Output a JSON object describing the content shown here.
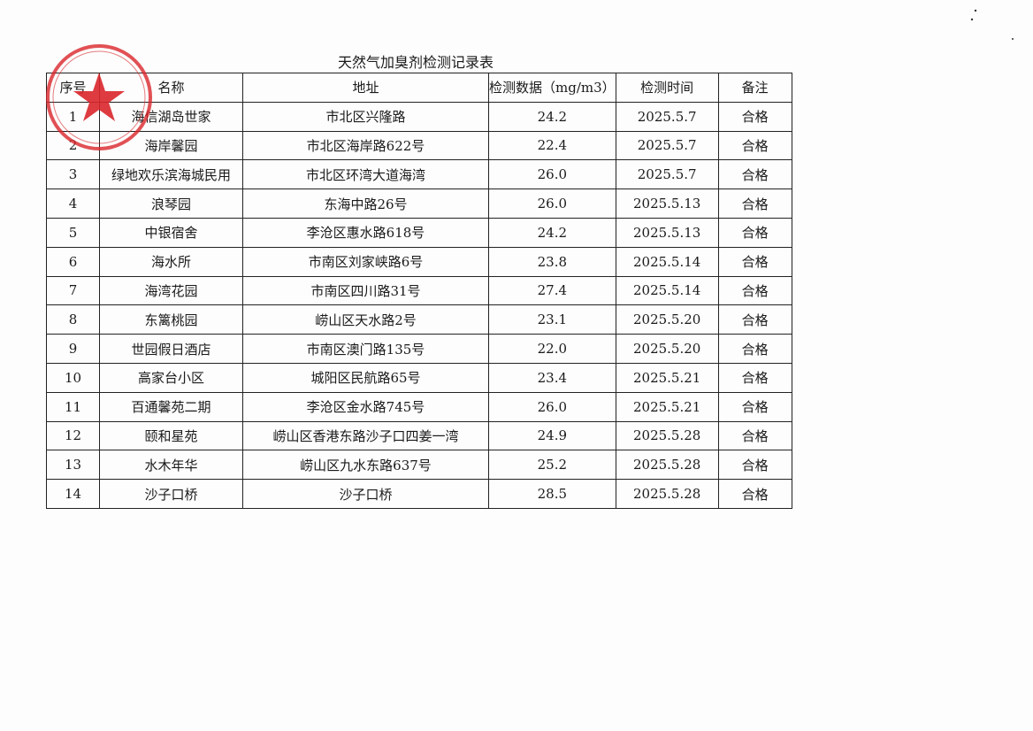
{
  "title": "天然气加臭剂检测记录表",
  "table": {
    "header": [
      "序号",
      "名称",
      "地址",
      "检测数据（mg/m3）",
      "检测时间",
      "备注"
    ],
    "rows": [
      [
        "1",
        "海信湖岛世家",
        "市北区兴隆路",
        "24.2",
        "2025.5.7",
        "合格"
      ],
      [
        "2",
        "海岸馨园",
        "市北区海岸路622号",
        "22.4",
        "2025.5.7",
        "合格"
      ],
      [
        "3",
        "绿地欢乐滨海城民用",
        "市北区环湾大道海湾",
        "26.0",
        "2025.5.7",
        "合格"
      ],
      [
        "4",
        "浪琴园",
        "东海中路26号",
        "26.0",
        "2025.5.13",
        "合格"
      ],
      [
        "5",
        "中银宿舍",
        "李沧区惠水路618号",
        "24.2",
        "2025.5.13",
        "合格"
      ],
      [
        "6",
        "海水所",
        "市南区刘家峡路6号",
        "23.8",
        "2025.5.14",
        "合格"
      ],
      [
        "7",
        "海湾花园",
        "市南区四川路31号",
        "27.4",
        "2025.5.14",
        "合格"
      ],
      [
        "8",
        "东篱桃园",
        "崂山区天水路2号",
        "23.1",
        "2025.5.20",
        "合格"
      ],
      [
        "9",
        "世园假日酒店",
        "市南区澳门路135号",
        "22.0",
        "2025.5.20",
        "合格"
      ],
      [
        "10",
        "高家台小区",
        "城阳区民航路65号",
        "23.4",
        "2025.5.21",
        "合格"
      ],
      [
        "11",
        "百通馨苑二期",
        "李沧区金水路745号",
        "26.0",
        "2025.5.21",
        "合格"
      ],
      [
        "12",
        "颐和星苑",
        "崂山区香港东路沙子口四姜一湾",
        "24.9",
        "2025.5.28",
        "合格"
      ],
      [
        "13",
        "水木年华",
        "崂山区九水东路637号",
        "25.2",
        "2025.5.28",
        "合格"
      ],
      [
        "14",
        "沙子口桥",
        "沙子口桥",
        "28.5",
        "2025.5.28",
        "合格"
      ]
    ]
  }
}
